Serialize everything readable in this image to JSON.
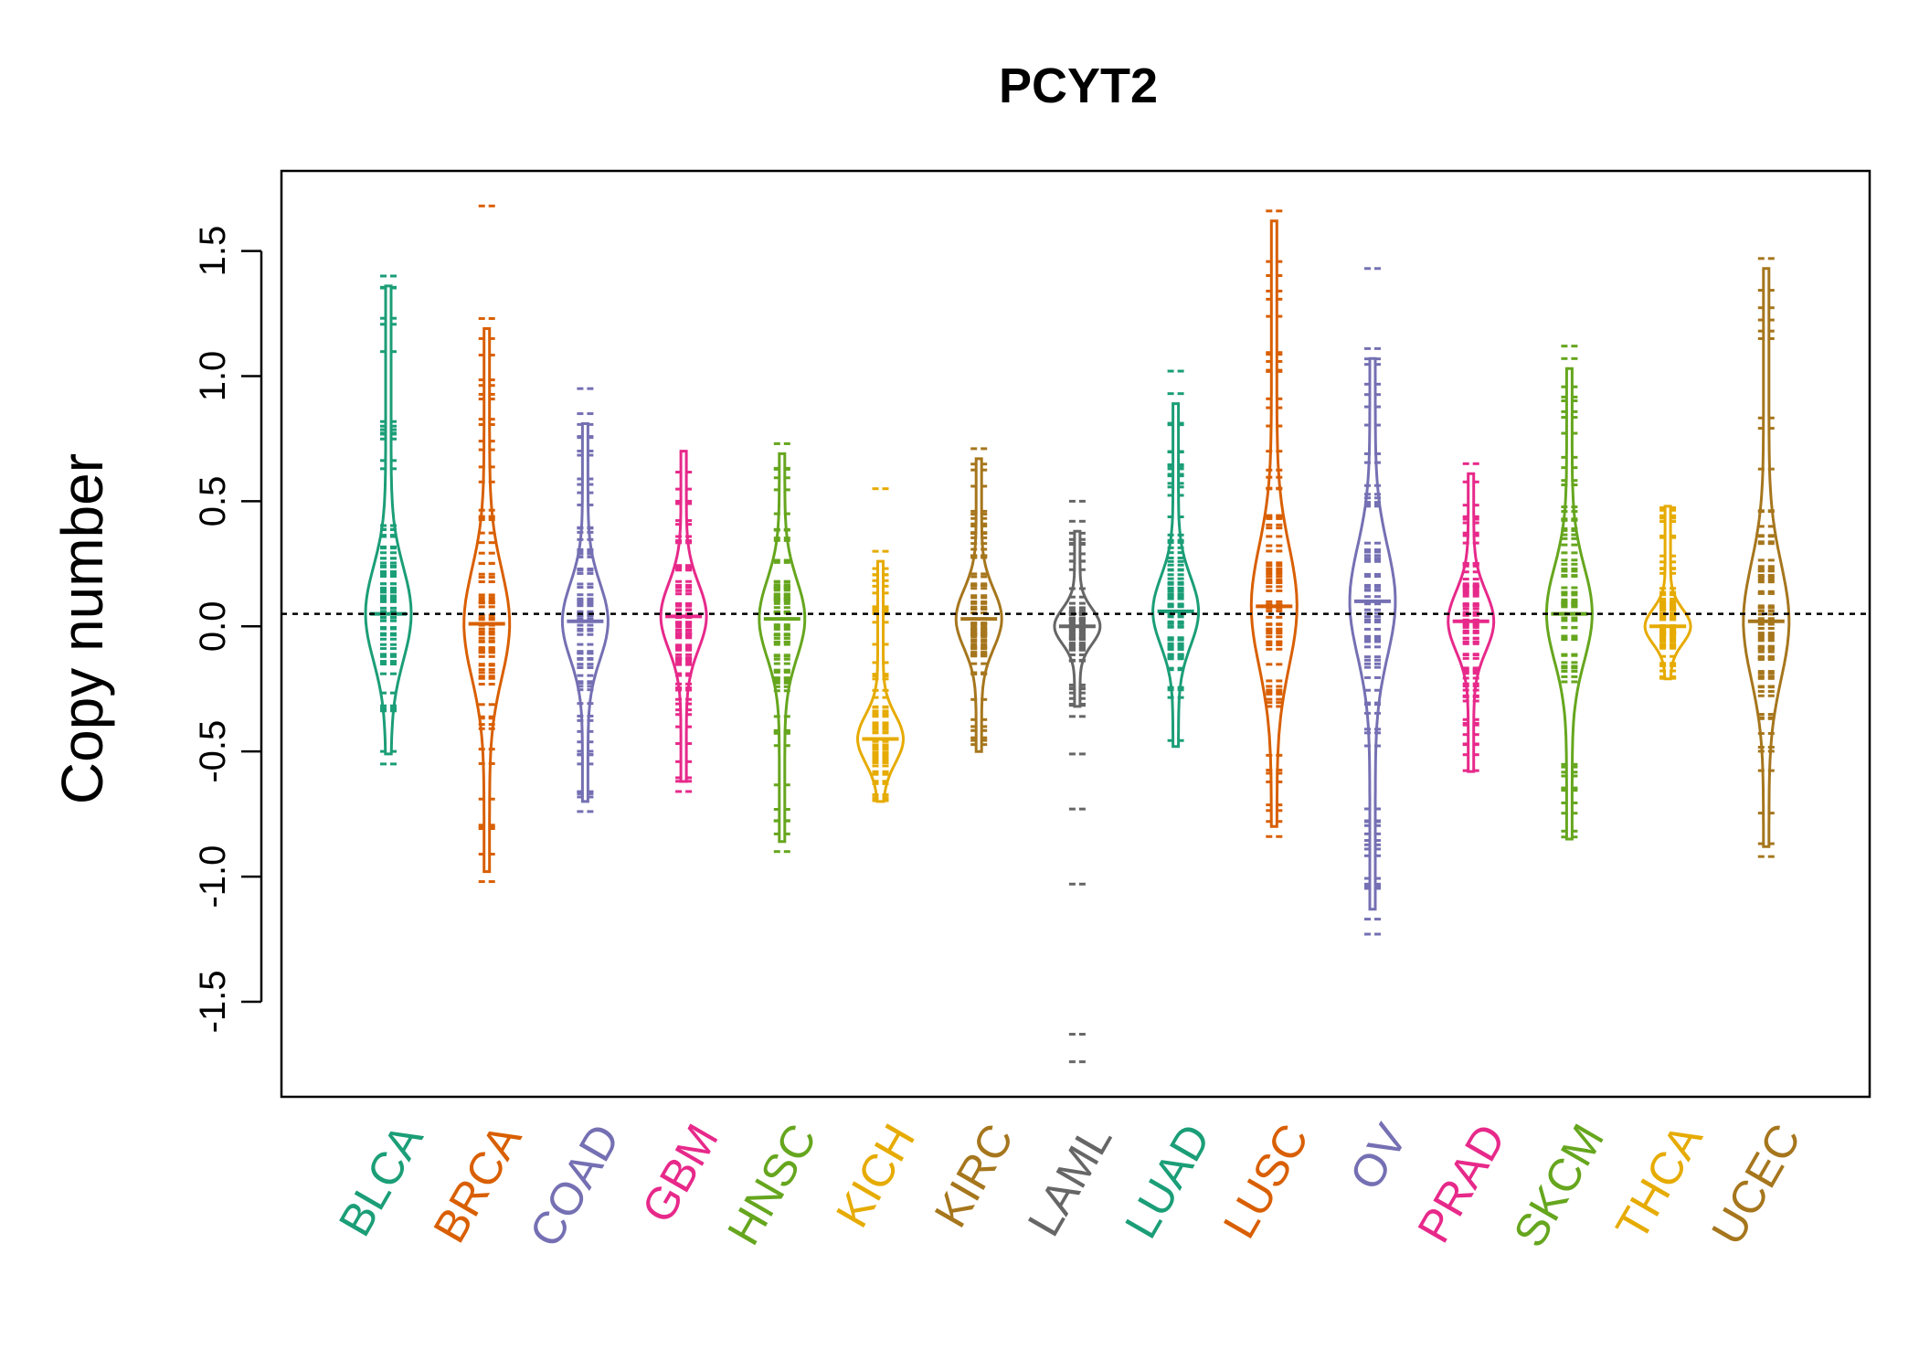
{
  "chart_data": {
    "type": "beanplot",
    "title": "PCYT2",
    "xlabel": "",
    "ylabel": "Copy number",
    "ylim": [
      -1.88,
      1.82
    ],
    "yticks": [
      -1.5,
      -1.0,
      -0.5,
      0.0,
      0.5,
      1.0,
      1.5
    ],
    "ytick_labels": [
      "-1.5",
      "-1.0",
      "-0.5",
      "0.0",
      "0.5",
      "1.0",
      "1.5"
    ],
    "reference_line": 0.05,
    "grid": false,
    "legend": "none",
    "categories": [
      "BLCA",
      "BRCA",
      "COAD",
      "GBM",
      "HNSC",
      "KICH",
      "KIRC",
      "LAML",
      "LUAD",
      "LUSC",
      "OV",
      "PRAD",
      "SKCM",
      "THCA",
      "UCEC"
    ],
    "colors": [
      "#1B9E77",
      "#D95F02",
      "#7570B3",
      "#E7298A",
      "#66A61E",
      "#E6AB02",
      "#A6761D",
      "#666666",
      "#1B9E77",
      "#D95F02",
      "#7570B3",
      "#E7298A",
      "#66A61E",
      "#E6AB02",
      "#A6761D"
    ],
    "series": [
      {
        "name": "BLCA",
        "min": -0.55,
        "max": 1.4,
        "median": 0.05,
        "peak_density_at": 0.05,
        "outliers": [
          1.4,
          -0.55
        ]
      },
      {
        "name": "BRCA",
        "min": -1.02,
        "max": 1.68,
        "median": 0.01,
        "peak_density_at": 0.01,
        "outliers": [
          1.68,
          1.23,
          -1.02
        ]
      },
      {
        "name": "COAD",
        "min": -0.74,
        "max": 0.95,
        "median": 0.02,
        "peak_density_at": 0.02,
        "outliers": [
          0.95,
          0.85,
          -0.74
        ]
      },
      {
        "name": "GBM",
        "min": -0.66,
        "max": 0.7,
        "median": 0.04,
        "peak_density_at": 0.04,
        "outliers": [
          -0.66
        ]
      },
      {
        "name": "HNSC",
        "min": -0.9,
        "max": 0.73,
        "median": 0.03,
        "peak_density_at": 0.03,
        "outliers": [
          0.73,
          -0.9
        ]
      },
      {
        "name": "KICH",
        "min": -0.7,
        "max": 0.55,
        "median": -0.45,
        "peak_density_at": -0.45,
        "outliers": [
          0.55,
          0.3
        ]
      },
      {
        "name": "KIRC",
        "min": -0.5,
        "max": 0.71,
        "median": 0.03,
        "peak_density_at": 0.03,
        "outliers": [
          0.71
        ]
      },
      {
        "name": "LAML",
        "min": -1.74,
        "max": 0.5,
        "median": 0.0,
        "peak_density_at": 0.0,
        "outliers": [
          0.5,
          0.42,
          -0.36,
          -0.51,
          -0.73,
          -1.03,
          -1.63,
          -1.74
        ]
      },
      {
        "name": "LUAD",
        "min": -0.48,
        "max": 1.02,
        "median": 0.06,
        "peak_density_at": 0.06,
        "outliers": [
          1.02,
          0.93
        ]
      },
      {
        "name": "LUSC",
        "min": -0.84,
        "max": 1.66,
        "median": 0.08,
        "peak_density_at": 0.08,
        "outliers": [
          1.66,
          -0.84
        ]
      },
      {
        "name": "OV",
        "min": -1.23,
        "max": 1.43,
        "median": 0.1,
        "peak_density_at": 0.1,
        "outliers": [
          1.43,
          1.11,
          -1.17,
          -1.23
        ]
      },
      {
        "name": "PRAD",
        "min": -0.58,
        "max": 0.65,
        "median": 0.02,
        "peak_density_at": 0.02,
        "outliers": [
          0.65
        ]
      },
      {
        "name": "SKCM",
        "min": -0.85,
        "max": 1.12,
        "median": 0.05,
        "peak_density_at": 0.05,
        "outliers": [
          1.12,
          1.07
        ]
      },
      {
        "name": "THCA",
        "min": -0.21,
        "max": 0.48,
        "median": 0.0,
        "peak_density_at": 0.0,
        "outliers": []
      },
      {
        "name": "UCEC",
        "min": -0.92,
        "max": 1.47,
        "median": 0.02,
        "peak_density_at": 0.02,
        "outliers": [
          1.47,
          -0.92
        ]
      }
    ]
  }
}
